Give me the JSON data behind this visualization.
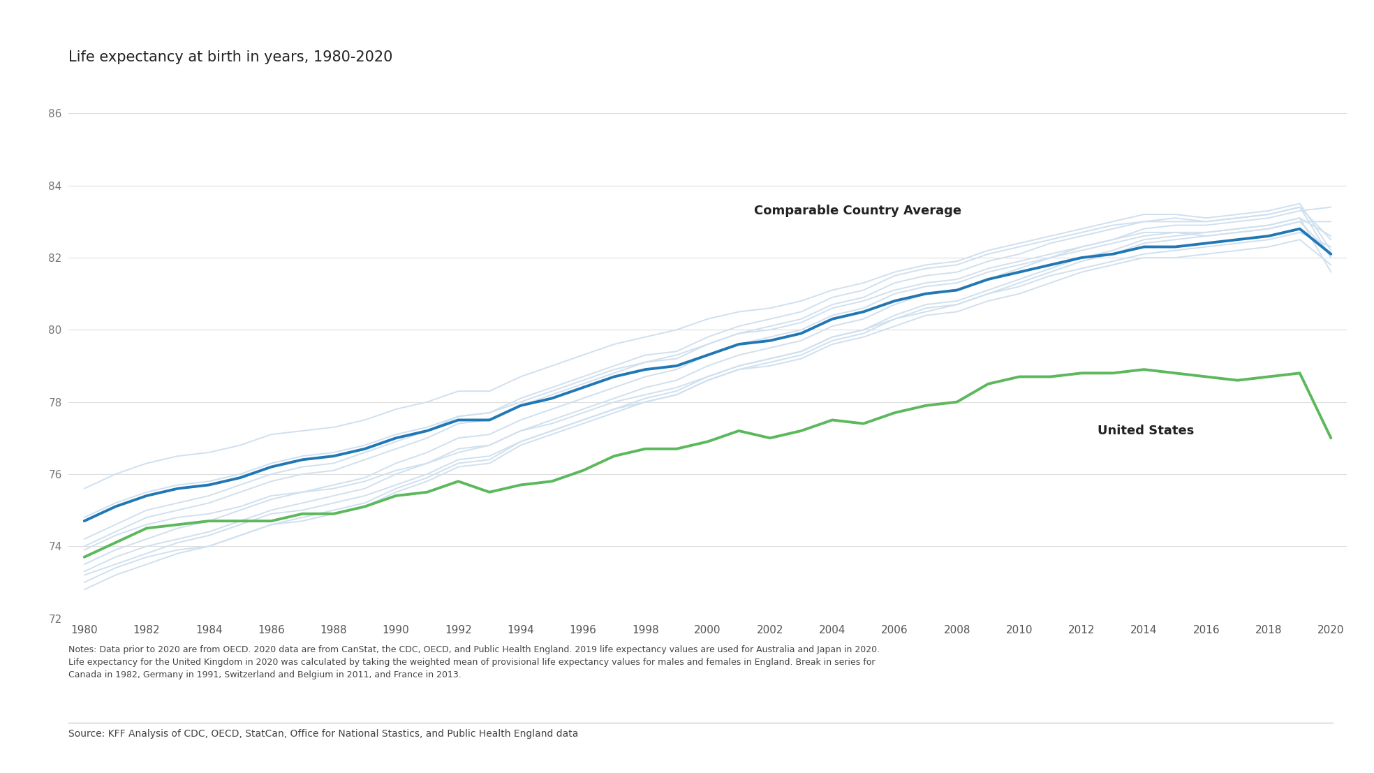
{
  "title": "Life expectancy at birth in years, 1980-2020",
  "ylim": [
    72,
    87
  ],
  "yticks": [
    72,
    74,
    76,
    78,
    80,
    82,
    84,
    86
  ],
  "xticks": [
    1980,
    1982,
    1984,
    1986,
    1988,
    1990,
    1992,
    1994,
    1996,
    1998,
    2000,
    2002,
    2004,
    2006,
    2008,
    2010,
    2012,
    2014,
    2016,
    2018,
    2020
  ],
  "xlim": [
    1979.5,
    2020.5
  ],
  "title_fontsize": 15,
  "background_color": "#ffffff",
  "us_color": "#5cb85c",
  "avg_color": "#2077b4",
  "gray_color": "#d0e0ef",
  "label_color": "#222222",
  "notes_text": "Notes: Data prior to 2020 are from OECD. 2020 data are from CanStat, the CDC, OECD, and Public Health England. 2019 life expectancy values are used for Australia and Japan in 2020.\nLife expectancy for the United Kingdom in 2020 was calculated by taking the weighted mean of provisional life expectancy values for males and females in England. Break in series for\nCanada in 1982, Germany in 1991, Switzerland and Belgium in 2011, and France in 2013.",
  "source_text": "Source: KFF Analysis of CDC, OECD, StatCan, Office for National Stastics, and Public Health England data",
  "us_data": {
    "years": [
      1980,
      1981,
      1982,
      1983,
      1984,
      1985,
      1986,
      1987,
      1988,
      1989,
      1990,
      1991,
      1992,
      1993,
      1994,
      1995,
      1996,
      1997,
      1998,
      1999,
      2000,
      2001,
      2002,
      2003,
      2004,
      2005,
      2006,
      2007,
      2008,
      2009,
      2010,
      2011,
      2012,
      2013,
      2014,
      2015,
      2016,
      2017,
      2018,
      2019,
      2020
    ],
    "values": [
      73.7,
      74.1,
      74.5,
      74.6,
      74.7,
      74.7,
      74.7,
      74.9,
      74.9,
      75.1,
      75.4,
      75.5,
      75.8,
      75.5,
      75.7,
      75.8,
      76.1,
      76.5,
      76.7,
      76.7,
      76.9,
      77.2,
      77.0,
      77.2,
      77.5,
      77.4,
      77.7,
      77.9,
      78.0,
      78.5,
      78.7,
      78.7,
      78.8,
      78.8,
      78.9,
      78.8,
      78.7,
      78.6,
      78.7,
      78.8,
      77.0
    ]
  },
  "avg_data": {
    "years": [
      1980,
      1981,
      1982,
      1983,
      1984,
      1985,
      1986,
      1987,
      1988,
      1989,
      1990,
      1991,
      1992,
      1993,
      1994,
      1995,
      1996,
      1997,
      1998,
      1999,
      2000,
      2001,
      2002,
      2003,
      2004,
      2005,
      2006,
      2007,
      2008,
      2009,
      2010,
      2011,
      2012,
      2013,
      2014,
      2015,
      2016,
      2017,
      2018,
      2019,
      2020
    ],
    "values": [
      74.7,
      75.1,
      75.4,
      75.6,
      75.7,
      75.9,
      76.2,
      76.4,
      76.5,
      76.7,
      77.0,
      77.2,
      77.5,
      77.5,
      77.9,
      78.1,
      78.4,
      78.7,
      78.9,
      79.0,
      79.3,
      79.6,
      79.7,
      79.9,
      80.3,
      80.5,
      80.8,
      81.0,
      81.1,
      81.4,
      81.6,
      81.8,
      82.0,
      82.1,
      82.3,
      82.3,
      82.4,
      82.5,
      82.6,
      82.8,
      82.1
    ]
  },
  "country_lines": [
    [
      73.9,
      74.3,
      74.6,
      74.8,
      74.9,
      75.1,
      75.4,
      75.5,
      75.6,
      75.8,
      76.1,
      76.3,
      76.6,
      76.8,
      77.2,
      77.4,
      77.7,
      78.0,
      78.2,
      78.4,
      78.7,
      79.0,
      79.2,
      79.4,
      79.8,
      80.0,
      80.3,
      80.5,
      80.7,
      81.0,
      81.2,
      81.5,
      81.7,
      81.9,
      82.1,
      82.2,
      82.3,
      82.4,
      82.5,
      82.7,
      82.3
    ],
    [
      73.2,
      73.5,
      73.8,
      74.1,
      74.3,
      74.6,
      74.9,
      75.0,
      75.2,
      75.4,
      75.7,
      76.0,
      76.4,
      76.5,
      76.9,
      77.2,
      77.5,
      77.8,
      78.0,
      78.2,
      78.6,
      78.9,
      79.0,
      79.2,
      79.6,
      79.8,
      80.1,
      80.4,
      80.5,
      80.8,
      81.0,
      81.3,
      81.6,
      81.8,
      82.0,
      82.0,
      82.1,
      82.2,
      82.3,
      82.5,
      81.8
    ],
    [
      74.2,
      74.6,
      75.0,
      75.2,
      75.4,
      75.7,
      76.0,
      76.2,
      76.3,
      76.6,
      76.9,
      77.2,
      77.6,
      77.7,
      78.1,
      78.4,
      78.7,
      79.0,
      79.3,
      79.4,
      79.8,
      80.1,
      80.3,
      80.5,
      80.9,
      81.1,
      81.5,
      81.7,
      81.8,
      82.1,
      82.3,
      82.5,
      82.7,
      82.9,
      83.0,
      83.1,
      83.0,
      83.1,
      83.2,
      83.4,
      82.0
    ],
    [
      74.8,
      75.2,
      75.5,
      75.7,
      75.8,
      76.0,
      76.3,
      76.5,
      76.6,
      76.8,
      77.1,
      77.3,
      77.6,
      77.7,
      78.0,
      78.3,
      78.6,
      78.9,
      79.1,
      79.3,
      79.6,
      79.9,
      80.0,
      80.2,
      80.6,
      80.8,
      81.1,
      81.3,
      81.4,
      81.7,
      81.9,
      82.1,
      82.3,
      82.5,
      82.7,
      82.7,
      82.7,
      82.8,
      82.9,
      83.1,
      82.6
    ],
    [
      73.0,
      73.4,
      73.7,
      73.9,
      74.0,
      74.3,
      74.6,
      74.7,
      74.9,
      75.1,
      75.5,
      75.8,
      76.2,
      76.3,
      76.8,
      77.1,
      77.4,
      77.7,
      78.0,
      78.2,
      78.6,
      78.9,
      79.1,
      79.3,
      79.7,
      79.9,
      80.3,
      80.6,
      80.7,
      81.0,
      81.3,
      81.6,
      81.9,
      82.1,
      82.4,
      82.5,
      82.6,
      82.7,
      82.8,
      83.0,
      83.0
    ],
    [
      75.6,
      76.0,
      76.3,
      76.5,
      76.6,
      76.8,
      77.1,
      77.2,
      77.3,
      77.5,
      77.8,
      78.0,
      78.3,
      78.3,
      78.7,
      79.0,
      79.3,
      79.6,
      79.8,
      80.0,
      80.3,
      80.5,
      80.6,
      80.8,
      81.1,
      81.3,
      81.6,
      81.8,
      81.9,
      82.2,
      82.4,
      82.6,
      82.8,
      83.0,
      83.2,
      83.2,
      83.1,
      83.2,
      83.3,
      83.5,
      82.2
    ],
    [
      74.0,
      74.4,
      74.8,
      75.0,
      75.2,
      75.5,
      75.8,
      76.0,
      76.1,
      76.4,
      76.7,
      77.0,
      77.4,
      77.5,
      77.9,
      78.2,
      78.5,
      78.8,
      79.1,
      79.2,
      79.6,
      79.9,
      80.1,
      80.3,
      80.7,
      80.9,
      81.3,
      81.5,
      81.6,
      81.9,
      82.1,
      82.4,
      82.6,
      82.8,
      83.0,
      83.0,
      83.0,
      83.1,
      83.2,
      83.4,
      82.5
    ],
    [
      72.8,
      73.2,
      73.5,
      73.8,
      74.0,
      74.3,
      74.6,
      74.8,
      75.0,
      75.2,
      75.6,
      75.9,
      76.3,
      76.4,
      76.9,
      77.2,
      77.5,
      77.8,
      78.1,
      78.3,
      78.7,
      79.0,
      79.2,
      79.4,
      79.8,
      80.0,
      80.4,
      80.7,
      80.8,
      81.1,
      81.4,
      81.7,
      82.0,
      82.2,
      82.5,
      82.6,
      82.7,
      82.8,
      82.9,
      83.1,
      81.6
    ],
    [
      73.5,
      73.9,
      74.2,
      74.5,
      74.7,
      75.0,
      75.3,
      75.5,
      75.7,
      75.9,
      76.3,
      76.6,
      77.0,
      77.1,
      77.5,
      77.8,
      78.1,
      78.4,
      78.7,
      78.9,
      79.3,
      79.6,
      79.8,
      80.0,
      80.4,
      80.6,
      81.0,
      81.2,
      81.3,
      81.6,
      81.8,
      82.0,
      82.2,
      82.4,
      82.6,
      82.7,
      82.6,
      82.7,
      82.8,
      83.0,
      82.1
    ],
    [
      73.3,
      73.7,
      74.0,
      74.2,
      74.4,
      74.7,
      75.0,
      75.2,
      75.4,
      75.6,
      76.0,
      76.3,
      76.7,
      76.8,
      77.2,
      77.5,
      77.8,
      78.1,
      78.4,
      78.6,
      79.0,
      79.3,
      79.5,
      79.7,
      80.1,
      80.3,
      80.7,
      81.0,
      81.1,
      81.4,
      81.7,
      82.0,
      82.3,
      82.5,
      82.8,
      82.9,
      82.9,
      83.0,
      83.1,
      83.3,
      83.4
    ]
  ]
}
